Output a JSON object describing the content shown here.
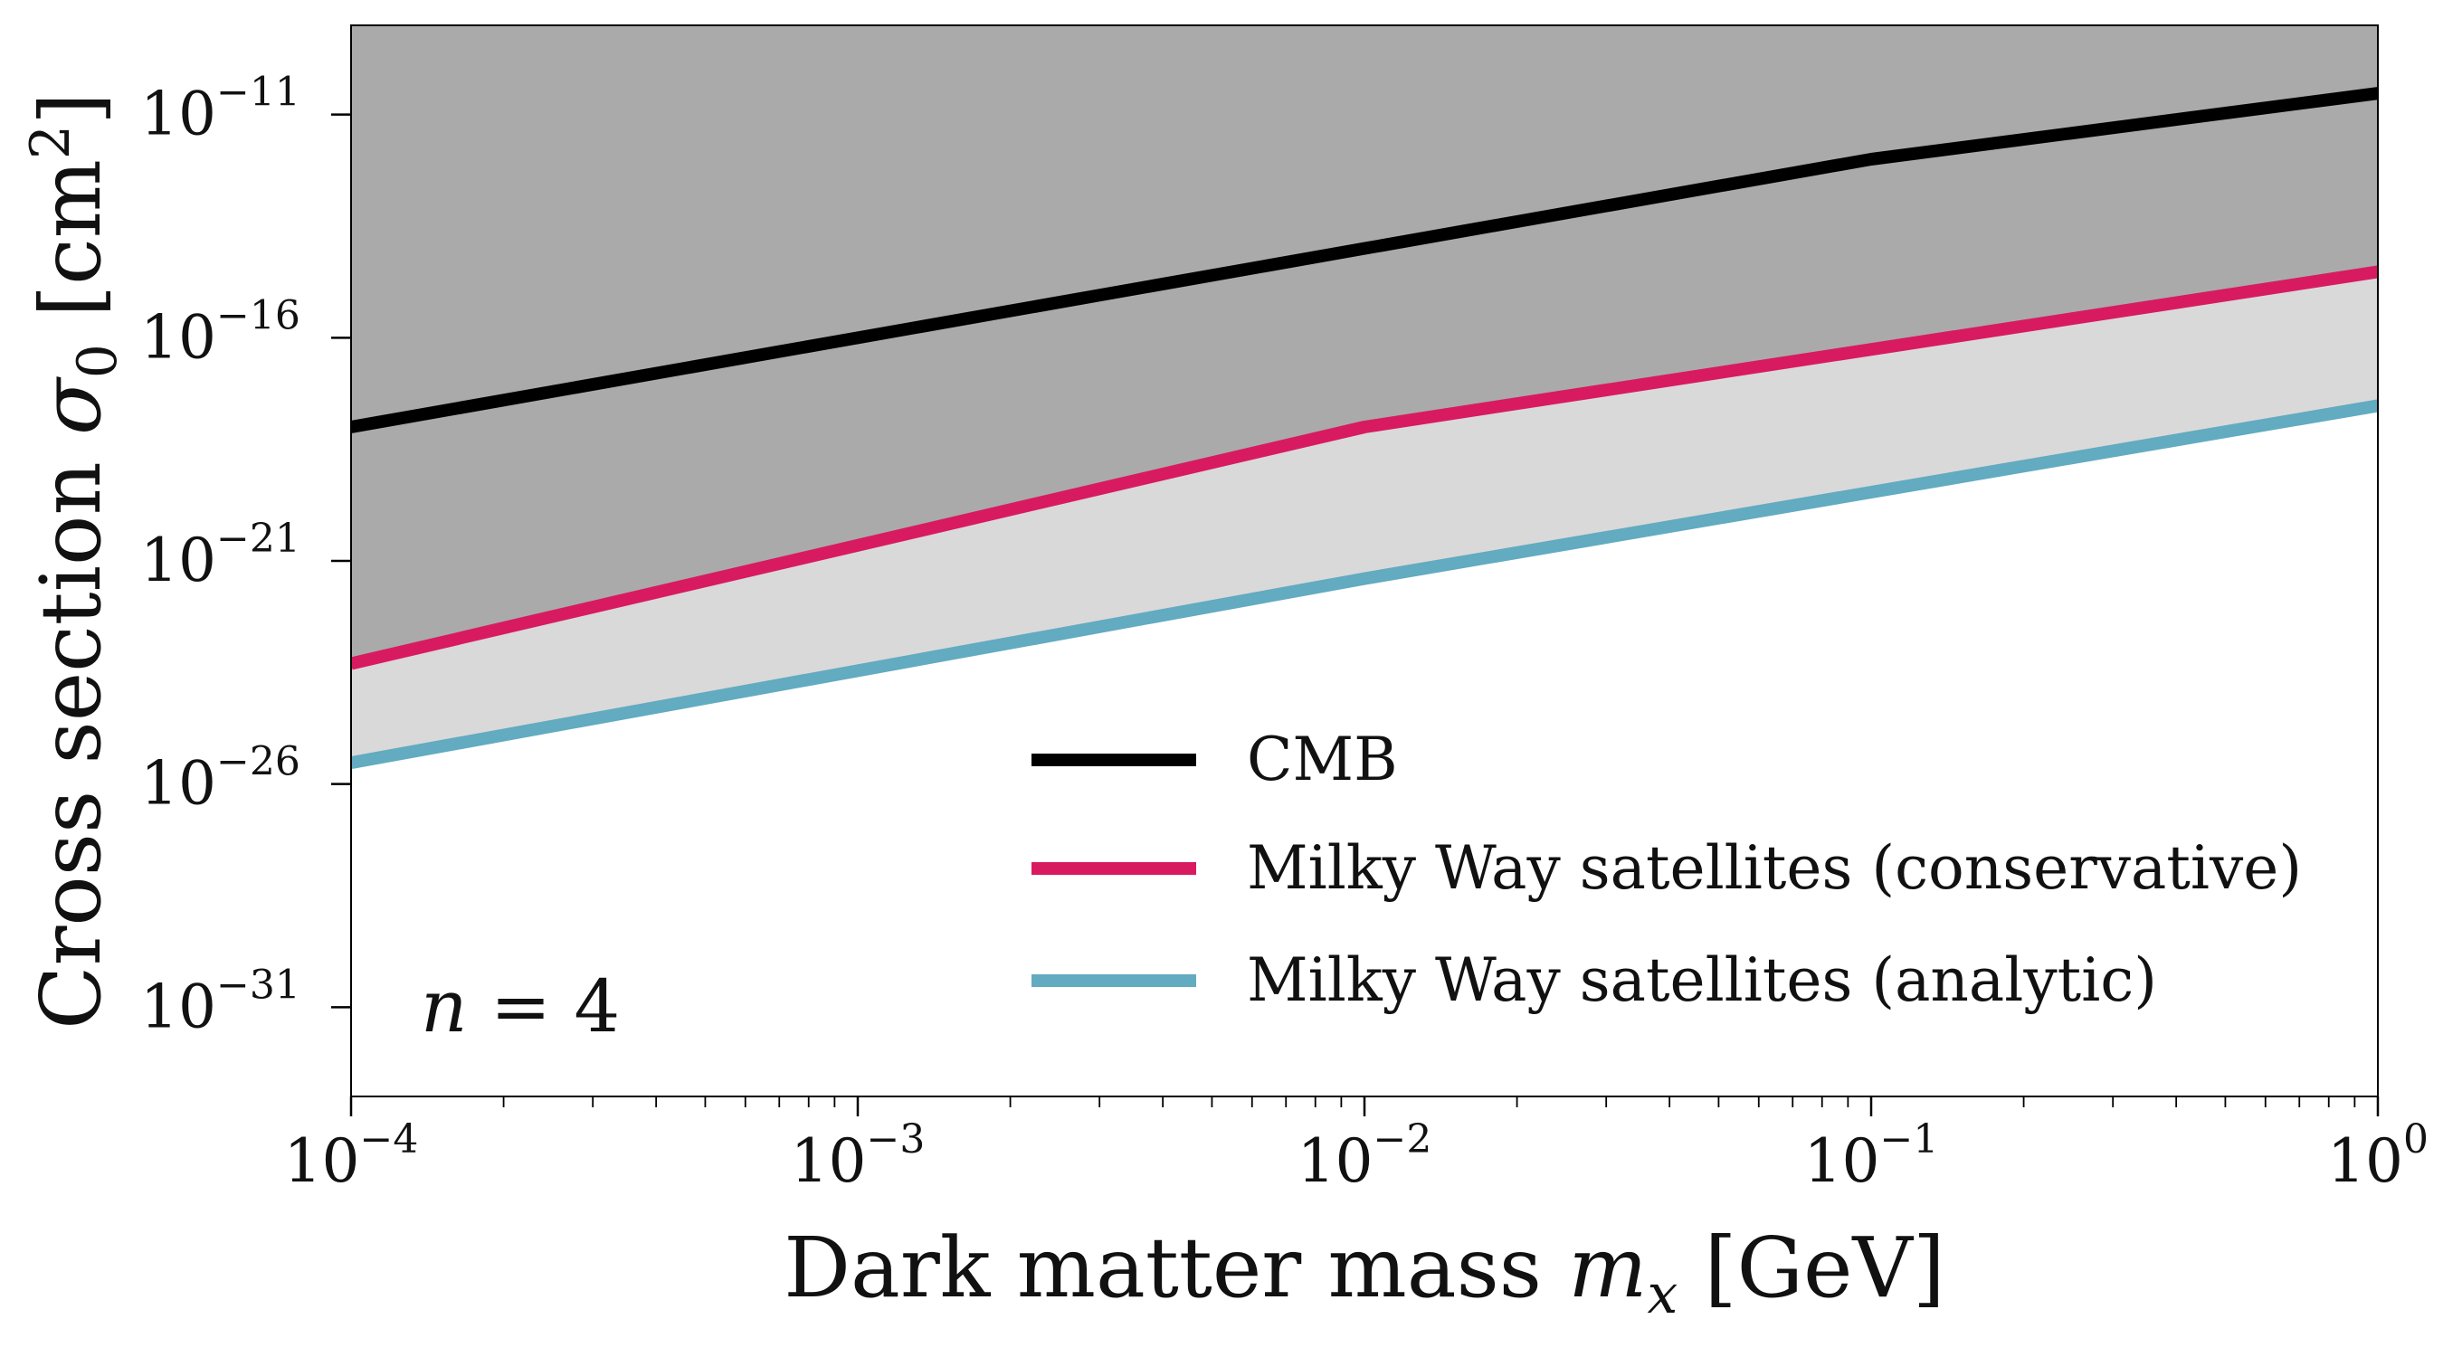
{
  "chart_data": {
    "type": "line",
    "xscale": "log",
    "yscale": "log",
    "xlim": [
      0.0001,
      1
    ],
    "ylim": [
      1e-33,
      1e-09
    ],
    "xlabel_text": "Dark matter mass ",
    "xlabel_var": "m",
    "xlabel_sub": "x",
    "xlabel_unit": " [GeV]",
    "ylabel_text": "Cross section ",
    "ylabel_var": "σ",
    "ylabel_sub": "0",
    "ylabel_unit": " [cm",
    "ylabel_unit_exp": "2",
    "ylabel_unit_close": "]",
    "xticks": [
      {
        "value": 0.0001,
        "base": "10",
        "exp": "−4"
      },
      {
        "value": 0.001,
        "base": "10",
        "exp": "−3"
      },
      {
        "value": 0.01,
        "base": "10",
        "exp": "−2"
      },
      {
        "value": 0.1,
        "base": "10",
        "exp": "−1"
      },
      {
        "value": 1,
        "base": "10",
        "exp": "0"
      }
    ],
    "yticks": [
      {
        "value": 1e-11,
        "base": "10",
        "exp": "−11"
      },
      {
        "value": 1e-16,
        "base": "10",
        "exp": "−16"
      },
      {
        "value": 1e-21,
        "base": "10",
        "exp": "−21"
      },
      {
        "value": 1e-26,
        "base": "10",
        "exp": "−26"
      },
      {
        "value": 1e-31,
        "base": "10",
        "exp": "−31"
      }
    ],
    "series": [
      {
        "name": "CMB",
        "color": "#000000",
        "x": [
          0.0001,
          0.001,
          0.01,
          0.1,
          1
        ],
        "y": [
          1e-18,
          1e-16,
          1e-14,
          1e-12,
          3e-11
        ]
      },
      {
        "name": "Milky Way satellites (conservative)",
        "color": "#d81b60",
        "x": [
          0.0001,
          0.01,
          1
        ],
        "y": [
          5e-24,
          1e-18,
          3e-15
        ]
      },
      {
        "name": "Milky Way satellites (analytic)",
        "color": "#62abc0",
        "x": [
          0.0001,
          0.01,
          1
        ],
        "y": [
          3e-26,
          4e-22,
          3e-18
        ]
      }
    ],
    "fills": {
      "cmb_excluded": "#aaaaaa",
      "satellites_excluded": "#d9d9d9"
    },
    "legend_position": "lower-right",
    "annotation": {
      "var": "n",
      "rest": " = 4"
    }
  }
}
